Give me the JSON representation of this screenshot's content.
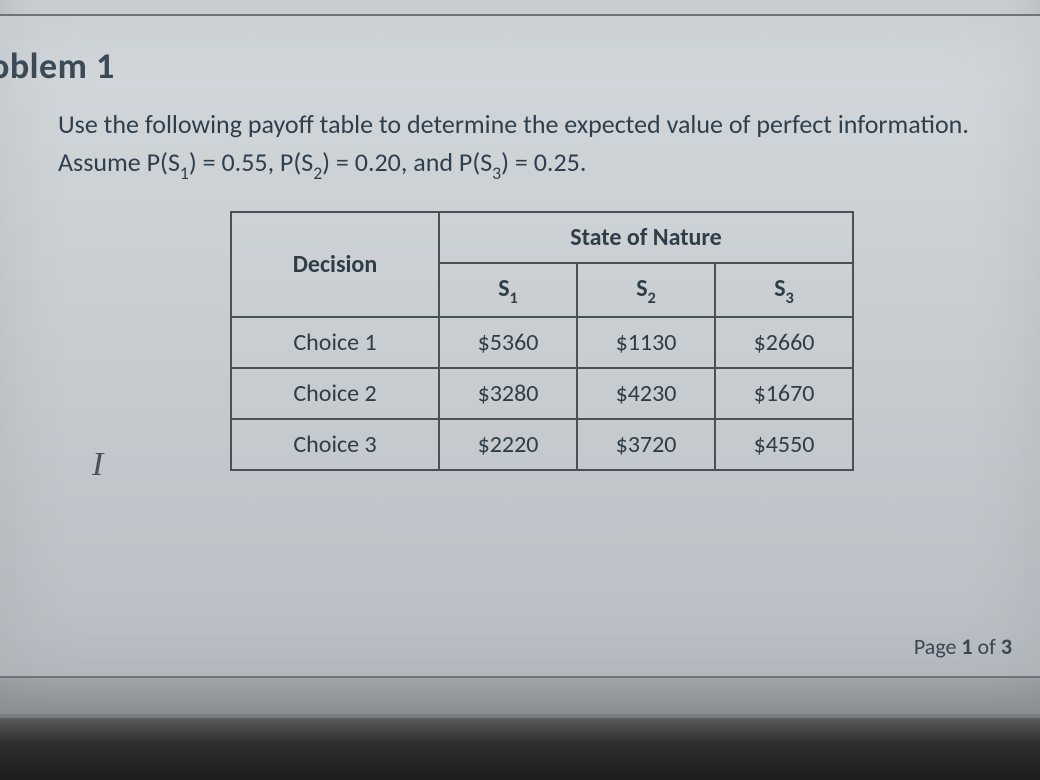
{
  "problem": {
    "title_visible": "oblem 1",
    "intro_line1": "Use the following payoff table to determine the expected value of perfect information.",
    "assume_prefix": "Assume P(S",
    "prob_s1": "0.55",
    "prob_s2": "0.20",
    "prob_s3": "0.25"
  },
  "table": {
    "header_decision": "Decision",
    "header_state": "State of Nature",
    "state_cols": [
      "S",
      "S",
      "S"
    ],
    "state_subs": [
      "1",
      "2",
      "3"
    ],
    "rows": [
      {
        "label": "Choice 1",
        "cells": [
          "$5360",
          "$1130",
          "$2660"
        ]
      },
      {
        "label": "Choice 2",
        "cells": [
          "$3280",
          "$4230",
          "$1670"
        ]
      },
      {
        "label": "Choice 3",
        "cells": [
          "$2220",
          "$3720",
          "$4550"
        ]
      }
    ],
    "border_color": "#4a5055",
    "text_color": "#2f3d48",
    "cell_fontsize": 24
  },
  "pager": {
    "prefix": "Page ",
    "current": "1",
    "of": " of ",
    "total": "3"
  },
  "cursor_glyph": "I",
  "colors": {
    "screen_bg_top": "#c6cbce",
    "screen_bg_bottom": "#a9afb3",
    "title_color": "#3a4a57",
    "body_color": "#2f3f4d",
    "bezel": "#2d2e2f"
  }
}
